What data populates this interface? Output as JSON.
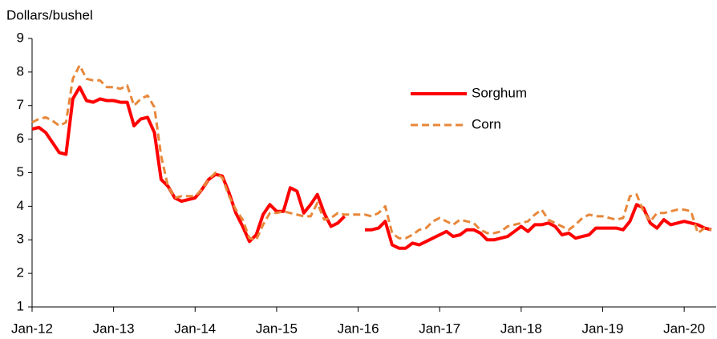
{
  "chart_data": {
    "type": "line",
    "y_axis_label": "Dollars/bushel",
    "categories": [
      "Jan-12",
      null,
      null,
      null,
      null,
      null,
      null,
      null,
      null,
      null,
      null,
      null,
      "Jan-13",
      null,
      null,
      null,
      null,
      null,
      null,
      null,
      null,
      null,
      null,
      null,
      "Jan-14",
      null,
      null,
      null,
      null,
      null,
      null,
      null,
      null,
      null,
      null,
      null,
      "Jan-15",
      null,
      null,
      null,
      null,
      null,
      null,
      null,
      null,
      null,
      null,
      null,
      "Jan-16",
      null,
      null,
      null,
      null,
      null,
      null,
      null,
      null,
      null,
      null,
      null,
      "Jan-17",
      null,
      null,
      null,
      null,
      null,
      null,
      null,
      null,
      null,
      null,
      null,
      "Jan-18",
      null,
      null,
      null,
      null,
      null,
      null,
      null,
      null,
      null,
      null,
      null,
      "Jan-19",
      null,
      null,
      null,
      null,
      null,
      null,
      null,
      null,
      null,
      null,
      null,
      "Jan-20",
      null,
      null,
      null,
      null
    ],
    "series": [
      {
        "name": "Sorghum",
        "color": "#ff0000",
        "line_style": "solid",
        "values": [
          6.3,
          6.35,
          6.2,
          5.9,
          5.6,
          5.55,
          7.2,
          7.55,
          7.15,
          7.1,
          7.2,
          7.15,
          7.15,
          7.1,
          7.1,
          6.4,
          6.6,
          6.65,
          6.2,
          4.8,
          4.6,
          4.25,
          4.15,
          4.2,
          4.25,
          4.5,
          4.8,
          4.95,
          4.9,
          4.4,
          3.8,
          3.4,
          2.95,
          3.15,
          3.75,
          4.05,
          3.85,
          3.85,
          4.55,
          4.45,
          3.8,
          4.05,
          4.35,
          3.8,
          3.4,
          3.5,
          3.7,
          null,
          null,
          3.3,
          3.3,
          3.35,
          3.55,
          2.85,
          2.75,
          2.75,
          2.9,
          2.85,
          2.95,
          3.05,
          3.15,
          3.25,
          3.1,
          3.15,
          3.3,
          3.3,
          3.2,
          3.0,
          3.0,
          3.05,
          3.1,
          3.25,
          3.4,
          3.25,
          3.45,
          3.45,
          3.5,
          3.4,
          3.15,
          3.2,
          3.05,
          3.1,
          3.15,
          3.35,
          3.35,
          3.35,
          3.35,
          3.3,
          3.55,
          4.05,
          3.95,
          3.5,
          3.35,
          3.6,
          3.45,
          3.5,
          3.55,
          3.5,
          3.45,
          3.35,
          3.3
        ]
      },
      {
        "name": "Corn",
        "color": "#e8873a",
        "line_style": "dashed",
        "values": [
          6.5,
          6.6,
          6.65,
          6.55,
          6.4,
          6.5,
          7.8,
          8.2,
          7.8,
          7.75,
          7.75,
          7.55,
          7.55,
          7.5,
          7.6,
          7.0,
          7.2,
          7.3,
          6.95,
          5.5,
          4.6,
          4.25,
          4.3,
          4.3,
          4.3,
          4.5,
          4.8,
          5.0,
          4.85,
          4.3,
          3.9,
          3.6,
          3.05,
          3.0,
          3.45,
          3.8,
          3.8,
          3.85,
          3.8,
          3.75,
          3.7,
          3.7,
          4.1,
          3.6,
          3.65,
          3.8,
          3.75,
          3.75,
          3.75,
          3.75,
          3.7,
          3.8,
          4.0,
          3.2,
          3.05,
          3.05,
          3.15,
          3.3,
          3.35,
          3.55,
          3.65,
          3.55,
          3.45,
          3.6,
          3.55,
          3.5,
          3.3,
          3.2,
          3.2,
          3.25,
          3.4,
          3.45,
          3.5,
          3.55,
          3.75,
          3.9,
          3.6,
          3.5,
          3.4,
          3.3,
          3.45,
          3.65,
          3.75,
          3.7,
          3.7,
          3.65,
          3.6,
          3.65,
          4.3,
          4.35,
          3.85,
          3.55,
          3.8,
          3.8,
          3.85,
          3.9,
          3.9,
          3.85,
          3.2,
          3.35,
          3.3
        ]
      }
    ],
    "ylim": [
      1,
      9
    ],
    "yticks": [
      1,
      2,
      3,
      4,
      5,
      6,
      7,
      8,
      9
    ],
    "grid": false,
    "legend": "upper right"
  }
}
